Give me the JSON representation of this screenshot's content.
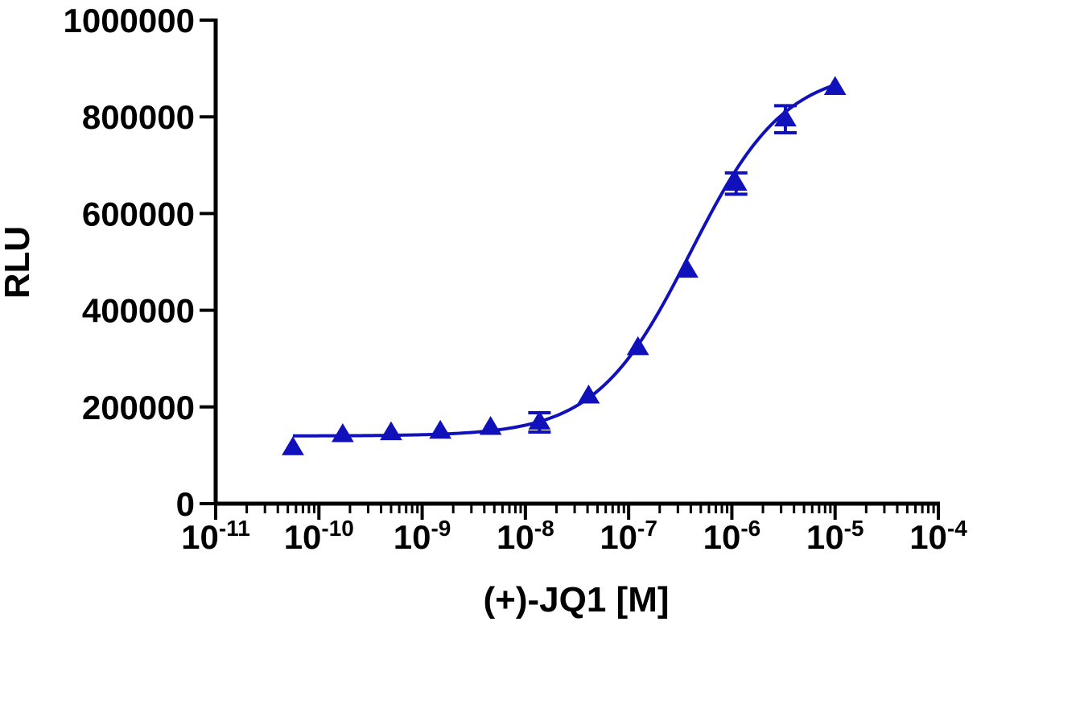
{
  "chart_data": {
    "type": "scatter",
    "title": "",
    "xlabel": "(+)-JQ1 [M]",
    "ylabel": "RLU",
    "x_scale": "log",
    "xlim": [
      1e-11,
      0.0001
    ],
    "ylim": [
      0,
      1000000
    ],
    "x_ticks": [
      {
        "base": "10",
        "exp": "-11"
      },
      {
        "base": "10",
        "exp": "-10"
      },
      {
        "base": "10",
        "exp": "-9"
      },
      {
        "base": "10",
        "exp": "-8"
      },
      {
        "base": "10",
        "exp": "-7"
      },
      {
        "base": "10",
        "exp": "-6"
      },
      {
        "base": "10",
        "exp": "-5"
      },
      {
        "base": "10",
        "exp": "-4"
      }
    ],
    "y_ticks": [
      "0",
      "200000",
      "400000",
      "600000",
      "800000",
      "1000000"
    ],
    "y_tick_values": [
      0,
      200000,
      400000,
      600000,
      800000,
      1000000
    ],
    "grid": false,
    "legend": "none",
    "color": "#1111bb",
    "marker": "triangle-up",
    "series": [
      {
        "x": [
          5.6e-11,
          1.7e-10,
          5e-10,
          1.5e-09,
          4.6e-09,
          1.37e-08,
          4.1e-08,
          1.23e-07,
          3.7e-07,
          1.1e-06,
          3.3e-06,
          1e-05
        ],
        "y": [
          115000,
          142000,
          146000,
          149000,
          157000,
          168000,
          222000,
          322000,
          482000,
          662000,
          795000,
          860000
        ],
        "yerr": [
          0,
          0,
          0,
          0,
          0,
          20000,
          0,
          0,
          0,
          22000,
          28000,
          0
        ]
      }
    ],
    "fit_curve": {
      "bottom": 140000,
      "top": 900000,
      "log_ec50": -6.4,
      "hill": 0.95,
      "x_range": [
        5.6e-11,
        1e-05
      ]
    }
  }
}
